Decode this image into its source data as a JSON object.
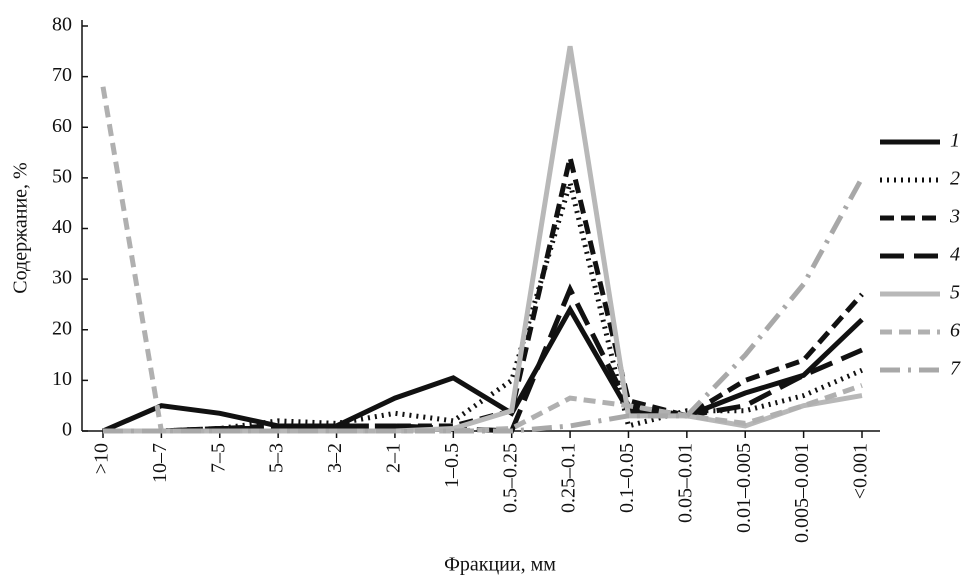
{
  "chart_data": {
    "type": "line",
    "xlabel": "Фракции, мм",
    "ylabel": "Содержание, %",
    "categories": [
      ">10",
      "10–7",
      "7–5",
      "5–3",
      "3–2",
      "2–1",
      "1–0.5",
      "0.5–0.25",
      "0.25–0.1",
      "0.1–0.05",
      "0.05–0.01",
      "0.01–0.005",
      "0.005–0.001",
      "<0.001"
    ],
    "ylim": [
      0,
      80
    ],
    "yticks": [
      0,
      10,
      20,
      30,
      40,
      50,
      60,
      70,
      80
    ],
    "series": [
      {
        "name": "1",
        "color": "#111111",
        "dash": "",
        "values": [
          0,
          5,
          3.5,
          1,
          1,
          6.5,
          10.5,
          3.5,
          24,
          4,
          3,
          7.5,
          11,
          22
        ]
      },
      {
        "name": "2",
        "color": "#111111",
        "dash": "2 5",
        "values": [
          0,
          0,
          0.5,
          2,
          1.5,
          3.5,
          2,
          10,
          49,
          1,
          4,
          4,
          7,
          12
        ]
      },
      {
        "name": "3",
        "color": "#111111",
        "dash": "14 7",
        "values": [
          0,
          0,
          0.5,
          1,
          1,
          1,
          1,
          4,
          54,
          6,
          3,
          10,
          14,
          27
        ]
      },
      {
        "name": "4",
        "color": "#111111",
        "dash": "24 10",
        "values": [
          0,
          0,
          0.5,
          0.5,
          1,
          1,
          0.5,
          0,
          28,
          5,
          3,
          5,
          11,
          16
        ]
      },
      {
        "name": "5",
        "color": "#b8b8b8",
        "dash": "",
        "values": [
          0,
          0,
          0,
          0,
          0,
          0,
          0.5,
          4,
          76,
          3,
          3,
          1,
          5,
          7
        ]
      },
      {
        "name": "6",
        "color": "#b0b0b0",
        "dash": "12 7",
        "values": [
          68,
          0,
          0,
          0,
          0,
          0,
          0,
          0.5,
          6.5,
          5,
          3,
          1.5,
          5,
          9
        ]
      },
      {
        "name": "7",
        "color": "#a8a8a8",
        "dash": "20 8 3 8",
        "values": [
          0,
          0,
          0,
          0,
          0,
          0,
          0,
          0,
          1,
          3,
          3,
          15,
          29,
          50
        ]
      }
    ]
  }
}
